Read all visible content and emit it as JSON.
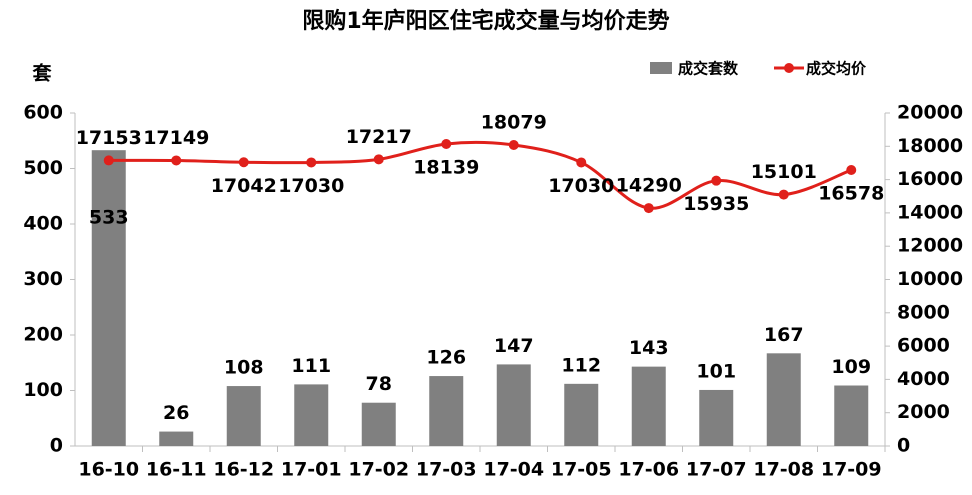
{
  "chart_data": {
    "type": "bar-line",
    "title": "限购1年庐阳区住宅成交量与均价走势",
    "y_label": "套",
    "categories": [
      "16-10",
      "16-11",
      "16-12",
      "17-01",
      "17-02",
      "17-03",
      "17-04",
      "17-05",
      "17-06",
      "17-07",
      "17-08",
      "17-09"
    ],
    "series": [
      {
        "name": "成交套数",
        "type": "bar",
        "color": "#808080",
        "values": [
          533,
          26,
          108,
          111,
          78,
          126,
          147,
          112,
          143,
          101,
          167,
          109
        ]
      },
      {
        "name": "成交均价",
        "type": "line",
        "axis": "y2",
        "color": "#e0201b",
        "values": [
          17153,
          17149,
          17042,
          17030,
          17217,
          18139,
          18079,
          17030,
          14290,
          15935,
          15101,
          16578
        ]
      }
    ],
    "ylim": [
      0,
      600
    ],
    "yticks": [
      0,
      100,
      200,
      300,
      400,
      500,
      600
    ],
    "y2lim": [
      0,
      20000
    ],
    "y2ticks": [
      0,
      2000,
      4000,
      6000,
      8000,
      10000,
      12000,
      14000,
      16000,
      18000,
      20000
    ],
    "grid": false,
    "legend": "top-right"
  }
}
